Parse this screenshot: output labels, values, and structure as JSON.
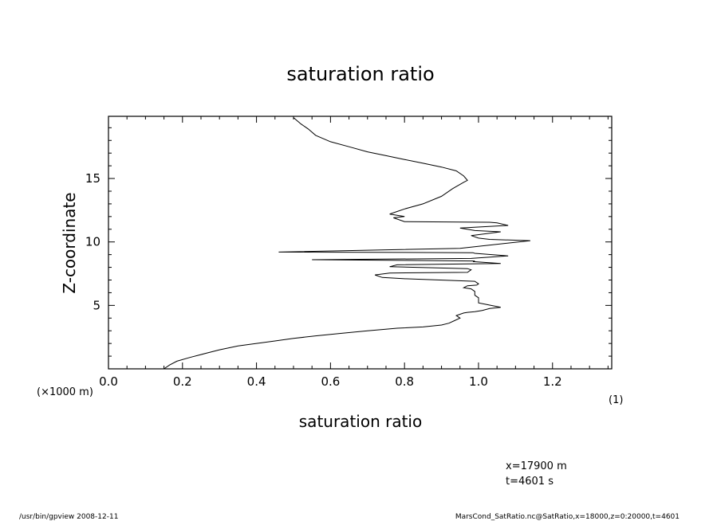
{
  "chart_data": {
    "type": "line",
    "title": "saturation ratio",
    "xlabel": "saturation ratio",
    "ylabel": "Z-coordinate",
    "x_unit_note": "(1)",
    "y_unit_note": "(×1000 m)",
    "xlim": [
      0,
      1.36
    ],
    "ylim": [
      0,
      19.9
    ],
    "x_ticks": [
      0.0,
      0.2,
      0.4,
      0.6,
      0.8,
      1.0,
      1.2
    ],
    "x_tick_labels": [
      "0.0",
      "0.2",
      "0.4",
      "0.6",
      "0.8",
      "1.0",
      "1.2"
    ],
    "y_ticks": [
      5,
      10,
      15
    ],
    "y_tick_labels": [
      "5",
      "10",
      "15"
    ],
    "grid": false,
    "series": [
      {
        "x": [
          0.15,
          0.165,
          0.185,
          0.22,
          0.26,
          0.3,
          0.35,
          0.4,
          0.45,
          0.5,
          0.56,
          0.63,
          0.7,
          0.78,
          0.85,
          0.9,
          0.92,
          0.935,
          0.95,
          0.94,
          0.96,
          0.97,
          0.99,
          1.0,
          1.01,
          1.03,
          1.06,
          1.0,
          1.0,
          0.99,
          0.99,
          0.98,
          0.96,
          0.97,
          0.995,
          1.0,
          0.99,
          0.8,
          0.74,
          0.72,
          0.76,
          0.97,
          0.98,
          0.97,
          0.76,
          0.78,
          1.06,
          0.985,
          0.99,
          0.55,
          0.98,
          1.08,
          0.99,
          0.985,
          0.46,
          0.95,
          1.14,
          1.03,
          1.0,
          0.98,
          1.06,
          0.99,
          0.95,
          1.08,
          1.05,
          1.03,
          0.8,
          0.77,
          0.8,
          0.76,
          0.78,
          0.8,
          0.85,
          0.9,
          0.93,
          0.96,
          0.97,
          0.96,
          0.94,
          0.9,
          0.85,
          0.8,
          0.75,
          0.7,
          0.65,
          0.6,
          0.56,
          0.54,
          0.52,
          0.5
        ],
        "y": [
          0.0,
          0.3,
          0.6,
          0.9,
          1.2,
          1.5,
          1.8,
          2.0,
          2.2,
          2.4,
          2.6,
          2.8,
          3.0,
          3.2,
          3.3,
          3.45,
          3.6,
          3.8,
          4.0,
          4.2,
          4.4,
          4.45,
          4.5,
          4.55,
          4.6,
          4.75,
          4.85,
          5.2,
          5.6,
          5.8,
          6.1,
          6.3,
          6.4,
          6.55,
          6.6,
          6.7,
          6.9,
          7.1,
          7.2,
          7.4,
          7.55,
          7.6,
          7.8,
          7.9,
          8.05,
          8.2,
          8.3,
          8.45,
          8.5,
          8.6,
          8.7,
          8.9,
          9.1,
          9.15,
          9.2,
          9.5,
          10.1,
          10.2,
          10.3,
          10.5,
          10.8,
          10.9,
          11.1,
          11.3,
          11.5,
          11.55,
          11.6,
          11.9,
          12.0,
          12.2,
          12.4,
          12.6,
          13.0,
          13.6,
          14.2,
          14.7,
          14.85,
          15.2,
          15.6,
          15.9,
          16.2,
          16.5,
          16.8,
          17.1,
          17.5,
          17.9,
          18.4,
          18.9,
          19.3,
          19.8
        ]
      }
    ],
    "annotations": [
      "x=17900 m",
      "t=4601 s"
    ]
  },
  "footer": {
    "left": "/usr/bin/gpview   2008-12-11",
    "right": "MarsCond_SatRatio.nc@SatRatio,x=18000,z=0:20000,t=4601"
  },
  "colors": {
    "line": "#000000",
    "background": "#ffffff"
  }
}
